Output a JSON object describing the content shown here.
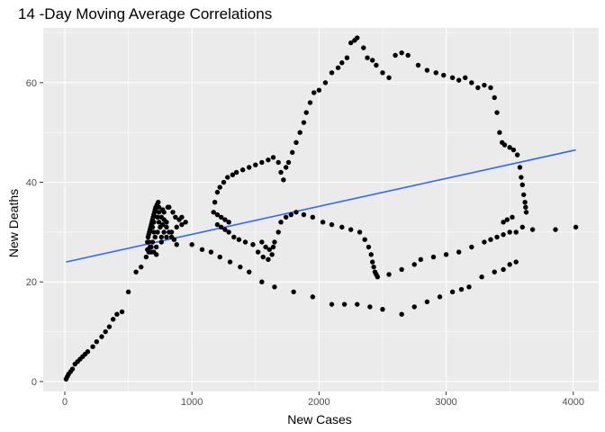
{
  "chart_data": {
    "type": "scatter",
    "title": "14 -Day Moving Average Correlations",
    "xlabel": "New  Cases",
    "ylabel": "New Deaths",
    "xlim": [
      -170,
      4200
    ],
    "ylim": [
      -2,
      71
    ],
    "xticks": [
      0,
      1000,
      2000,
      3000,
      4000
    ],
    "yticks": [
      0,
      20,
      40,
      60
    ],
    "grid": true,
    "background": "#ebebeb",
    "point_color": "#000000",
    "trend_color": "#3366ff",
    "trendline": {
      "x": [
        10,
        4020
      ],
      "y": [
        24,
        46.5
      ]
    },
    "points": [
      [
        10,
        0.5
      ],
      [
        20,
        1
      ],
      [
        30,
        1.5
      ],
      [
        45,
        2
      ],
      [
        60,
        2.5
      ],
      [
        80,
        3.5
      ],
      [
        100,
        4
      ],
      [
        120,
        4.5
      ],
      [
        140,
        5
      ],
      [
        160,
        5.5
      ],
      [
        180,
        6
      ],
      [
        220,
        7
      ],
      [
        250,
        8
      ],
      [
        290,
        9
      ],
      [
        320,
        10
      ],
      [
        350,
        11
      ],
      [
        380,
        12.5
      ],
      [
        410,
        13.5
      ],
      [
        450,
        14
      ],
      [
        500,
        18
      ],
      [
        560,
        22
      ],
      [
        600,
        23
      ],
      [
        640,
        25
      ],
      [
        660,
        26
      ],
      [
        680,
        27
      ],
      [
        700,
        26
      ],
      [
        720,
        25.5
      ],
      [
        650,
        26.5
      ],
      [
        670,
        27
      ],
      [
        690,
        28
      ],
      [
        710,
        29
      ],
      [
        730,
        30
      ],
      [
        750,
        31
      ],
      [
        770,
        31.5
      ],
      [
        800,
        32
      ],
      [
        655,
        29
      ],
      [
        665,
        30
      ],
      [
        675,
        31
      ],
      [
        685,
        32
      ],
      [
        695,
        33
      ],
      [
        705,
        34
      ],
      [
        715,
        35
      ],
      [
        725,
        35.5
      ],
      [
        735,
        36
      ],
      [
        650,
        28
      ],
      [
        660,
        29.5
      ],
      [
        670,
        30.5
      ],
      [
        680,
        31.5
      ],
      [
        690,
        32.5
      ],
      [
        700,
        33.5
      ],
      [
        710,
        34.5
      ],
      [
        720,
        35
      ],
      [
        740,
        34
      ],
      [
        760,
        33
      ],
      [
        780,
        32.5
      ],
      [
        800,
        31
      ],
      [
        820,
        30
      ],
      [
        840,
        29
      ],
      [
        860,
        28.5
      ],
      [
        880,
        27.5
      ],
      [
        660,
        28
      ],
      [
        700,
        30
      ],
      [
        740,
        32
      ],
      [
        780,
        34
      ],
      [
        820,
        35
      ],
      [
        850,
        34
      ],
      [
        870,
        33
      ],
      [
        900,
        32.5
      ],
      [
        920,
        33
      ],
      [
        680,
        26
      ],
      [
        720,
        27
      ],
      [
        760,
        28
      ],
      [
        800,
        29
      ],
      [
        840,
        30
      ],
      [
        880,
        31
      ],
      [
        920,
        31.5
      ],
      [
        950,
        32
      ],
      [
        690,
        31
      ],
      [
        730,
        33
      ],
      [
        770,
        34.5
      ],
      [
        810,
        35
      ],
      [
        760,
        29
      ],
      [
        780,
        30
      ],
      [
        700,
        32
      ],
      [
        740,
        35
      ],
      [
        1000,
        27.5
      ],
      [
        1080,
        26.5
      ],
      [
        1150,
        26
      ],
      [
        1220,
        25
      ],
      [
        1300,
        24
      ],
      [
        1380,
        23
      ],
      [
        1450,
        22
      ],
      [
        1550,
        20
      ],
      [
        1650,
        19
      ],
      [
        1800,
        18
      ],
      [
        1950,
        17
      ],
      [
        2100,
        15.5
      ],
      [
        2200,
        15.5
      ],
      [
        2300,
        15.5
      ],
      [
        2400,
        15
      ],
      [
        2500,
        14.5
      ],
      [
        2650,
        13.5
      ],
      [
        2750,
        15
      ],
      [
        2850,
        16
      ],
      [
        2950,
        17
      ],
      [
        3050,
        18
      ],
      [
        3120,
        18.5
      ],
      [
        3180,
        19
      ],
      [
        3280,
        21
      ],
      [
        3380,
        22
      ],
      [
        3450,
        22.5
      ],
      [
        3500,
        23.5
      ],
      [
        3550,
        24
      ],
      [
        1170,
        34
      ],
      [
        1200,
        33.5
      ],
      [
        1230,
        33
      ],
      [
        1260,
        32.5
      ],
      [
        1290,
        32
      ],
      [
        1200,
        31.5
      ],
      [
        1230,
        31
      ],
      [
        1260,
        30.5
      ],
      [
        1290,
        30
      ],
      [
        1330,
        29
      ],
      [
        1370,
        28.5
      ],
      [
        1420,
        28
      ],
      [
        1480,
        27.5
      ],
      [
        1520,
        26
      ],
      [
        1560,
        25
      ],
      [
        1600,
        24.5
      ],
      [
        1630,
        25.5
      ],
      [
        1550,
        28
      ],
      [
        1580,
        27
      ],
      [
        1610,
        26.5
      ],
      [
        1640,
        27
      ],
      [
        1650,
        28
      ],
      [
        1680,
        30
      ],
      [
        1700,
        32
      ],
      [
        1740,
        33
      ],
      [
        1780,
        33.5
      ],
      [
        1820,
        34
      ],
      [
        1880,
        33.5
      ],
      [
        1950,
        33
      ],
      [
        2030,
        32
      ],
      [
        2100,
        31.5
      ],
      [
        2180,
        31
      ],
      [
        2250,
        30.5
      ],
      [
        2320,
        30
      ],
      [
        2360,
        28.5
      ],
      [
        2390,
        27
      ],
      [
        2410,
        25.5
      ],
      [
        2420,
        24
      ],
      [
        2430,
        23
      ],
      [
        2440,
        22
      ],
      [
        2450,
        21.5
      ],
      [
        2460,
        21
      ],
      [
        2550,
        21.5
      ],
      [
        2650,
        22.5
      ],
      [
        2750,
        23.5
      ],
      [
        2800,
        24.5
      ],
      [
        2900,
        25
      ],
      [
        3000,
        25.5
      ],
      [
        3100,
        26
      ],
      [
        3200,
        27
      ],
      [
        3300,
        28
      ],
      [
        3350,
        28.5
      ],
      [
        3400,
        29
      ],
      [
        3450,
        29.5
      ],
      [
        3500,
        30
      ],
      [
        3550,
        30
      ],
      [
        3600,
        31
      ],
      [
        3680,
        30.5
      ],
      [
        3860,
        30.5
      ],
      [
        4020,
        31
      ],
      [
        1180,
        36
      ],
      [
        1200,
        38
      ],
      [
        1220,
        39
      ],
      [
        1250,
        40
      ],
      [
        1280,
        41
      ],
      [
        1320,
        41.5
      ],
      [
        1350,
        42
      ],
      [
        1400,
        42.5
      ],
      [
        1450,
        43
      ],
      [
        1500,
        43.5
      ],
      [
        1550,
        44
      ],
      [
        1600,
        44.5
      ],
      [
        1640,
        45
      ],
      [
        1680,
        44
      ],
      [
        1700,
        42
      ],
      [
        1720,
        40.5
      ],
      [
        1740,
        43
      ],
      [
        1760,
        44
      ],
      [
        1790,
        46
      ],
      [
        1820,
        48
      ],
      [
        1850,
        50
      ],
      [
        1880,
        52
      ],
      [
        1900,
        54
      ],
      [
        1930,
        56
      ],
      [
        1960,
        58
      ],
      [
        2000,
        58.5
      ],
      [
        2050,
        60
      ],
      [
        2100,
        62
      ],
      [
        2150,
        63
      ],
      [
        2180,
        64
      ],
      [
        2220,
        65
      ],
      [
        2250,
        68
      ],
      [
        2280,
        68.5
      ],
      [
        2300,
        69
      ],
      [
        2350,
        67
      ],
      [
        2380,
        65
      ],
      [
        2420,
        64.5
      ],
      [
        2450,
        63.5
      ],
      [
        2500,
        62
      ],
      [
        2550,
        61
      ],
      [
        2600,
        65.5
      ],
      [
        2650,
        66
      ],
      [
        2700,
        65.5
      ],
      [
        2780,
        63.5
      ],
      [
        2850,
        62.5
      ],
      [
        2920,
        62
      ],
      [
        2980,
        61.5
      ],
      [
        3050,
        61
      ],
      [
        3100,
        60.5
      ],
      [
        3150,
        61
      ],
      [
        3200,
        60
      ],
      [
        3250,
        59
      ],
      [
        3300,
        59.5
      ],
      [
        3350,
        59
      ],
      [
        3380,
        57
      ],
      [
        3400,
        54
      ],
      [
        3420,
        50
      ],
      [
        3440,
        48
      ],
      [
        3460,
        47.5
      ],
      [
        3500,
        47
      ],
      [
        3530,
        46.5
      ],
      [
        3560,
        45.5
      ],
      [
        3580,
        43
      ],
      [
        3590,
        41
      ],
      [
        3600,
        39.5
      ],
      [
        3610,
        37.5
      ],
      [
        3620,
        36
      ],
      [
        3625,
        35
      ],
      [
        3630,
        34
      ],
      [
        3520,
        33
      ],
      [
        3480,
        32.5
      ],
      [
        3450,
        32
      ]
    ]
  }
}
